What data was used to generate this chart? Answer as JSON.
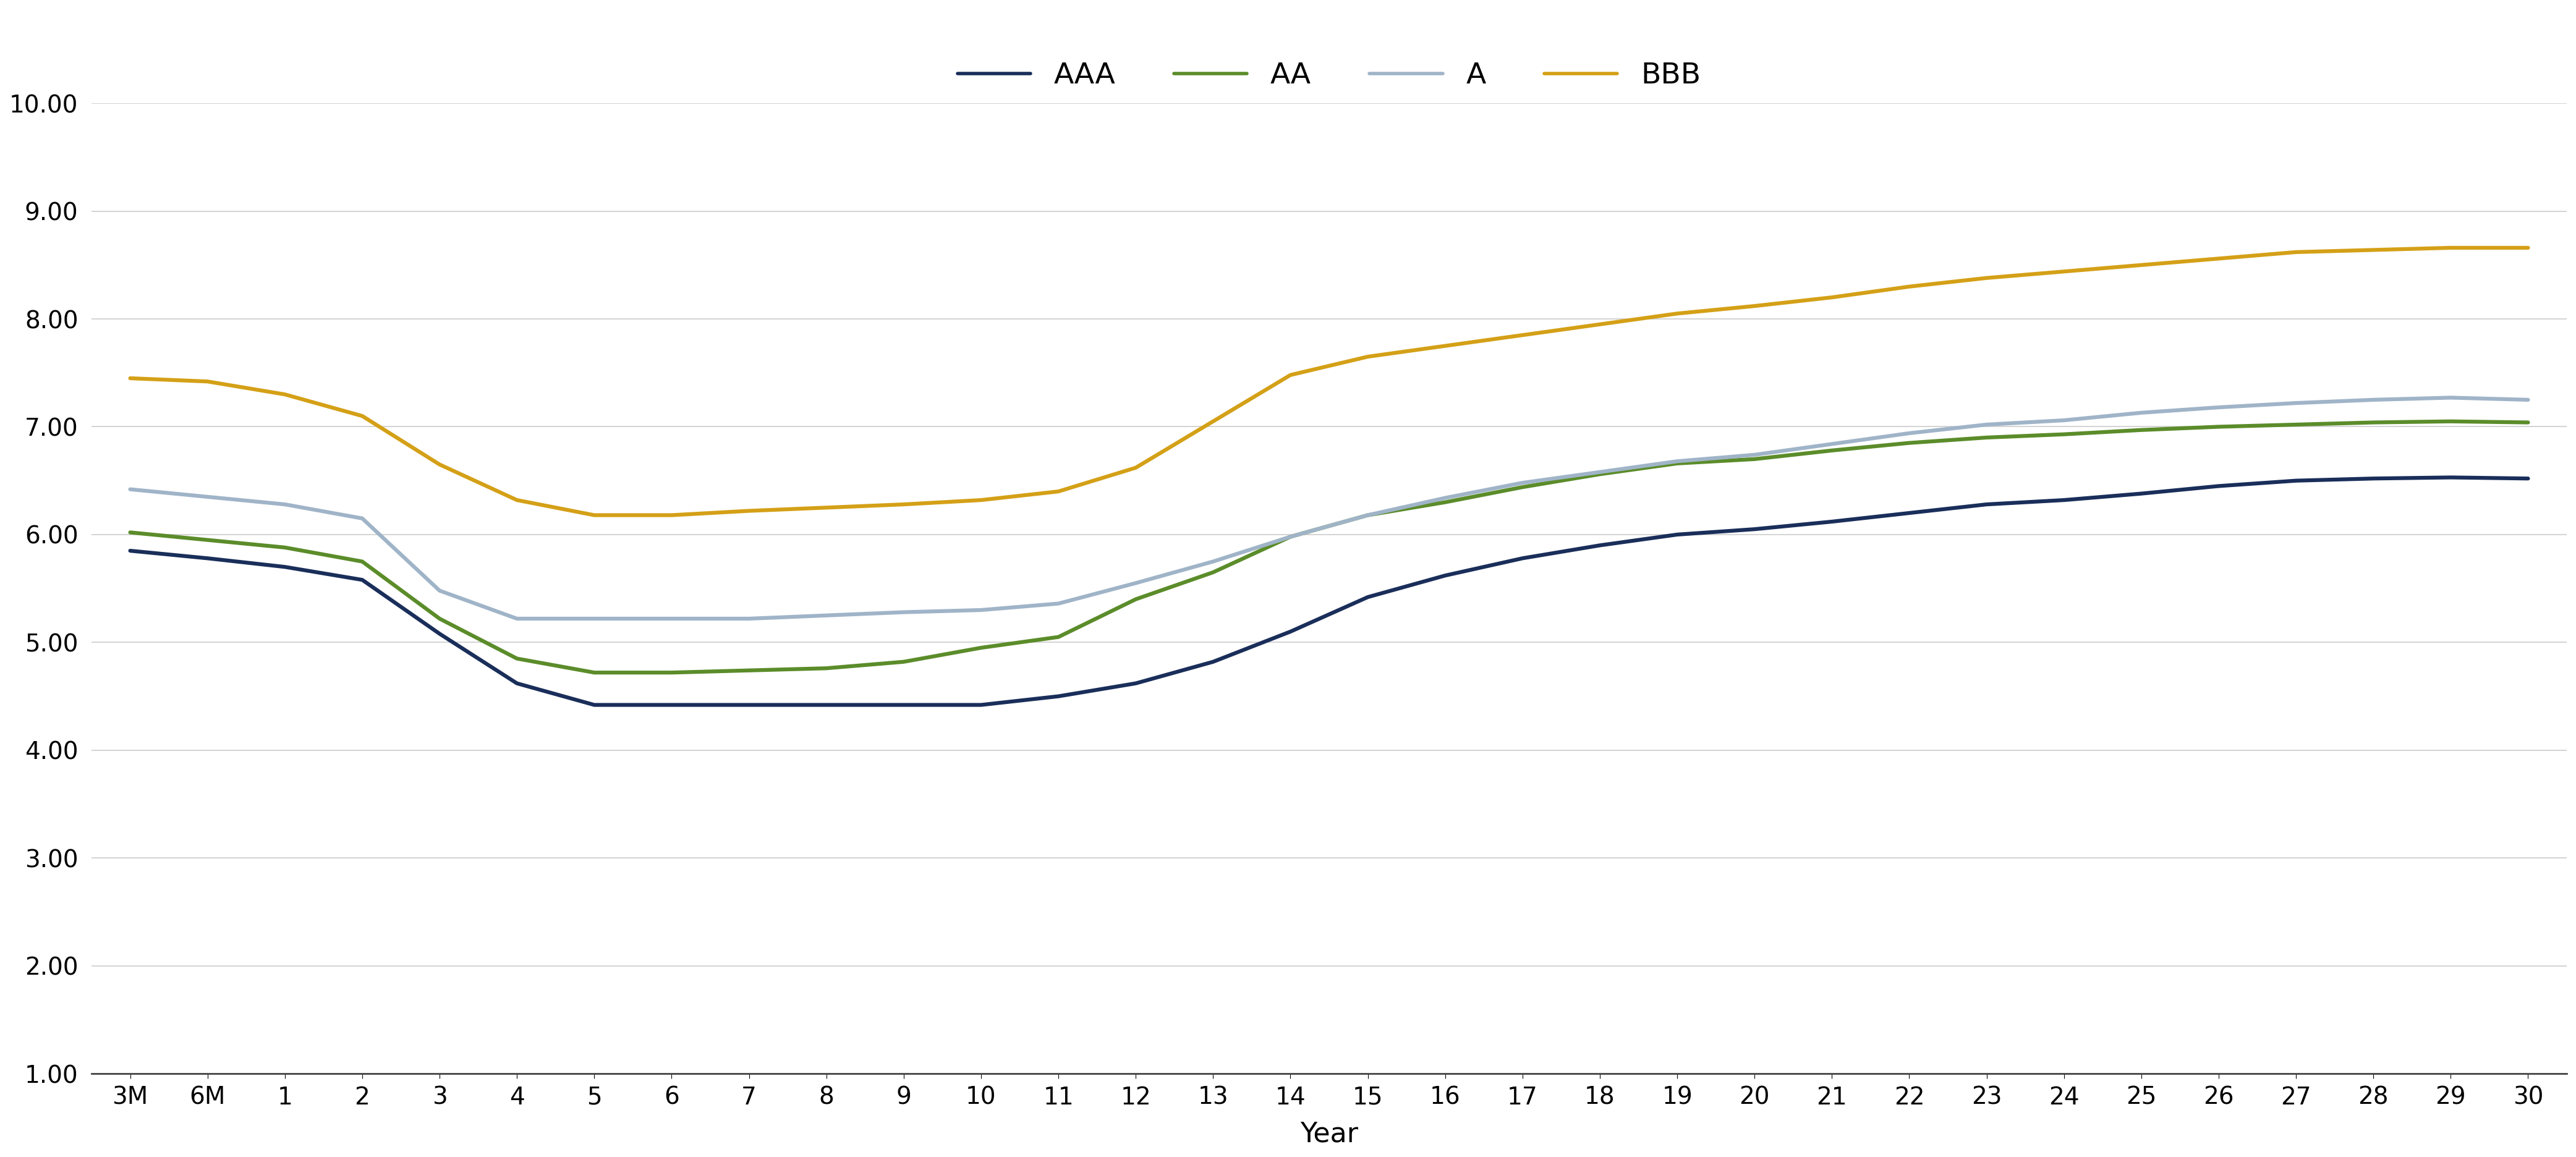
{
  "x_labels": [
    "3M",
    "6M",
    "1",
    "2",
    "3",
    "4",
    "5",
    "6",
    "7",
    "8",
    "9",
    "10",
    "11",
    "12",
    "13",
    "14",
    "15",
    "16",
    "17",
    "18",
    "19",
    "20",
    "21",
    "22",
    "23",
    "24",
    "25",
    "26",
    "27",
    "28",
    "29",
    "30"
  ],
  "x_positions": [
    0,
    1,
    2,
    3,
    4,
    5,
    6,
    7,
    8,
    9,
    10,
    11,
    12,
    13,
    14,
    15,
    16,
    17,
    18,
    19,
    20,
    21,
    22,
    23,
    24,
    25,
    26,
    27,
    28,
    29,
    30,
    31
  ],
  "AAA": [
    5.85,
    5.78,
    5.7,
    5.58,
    5.08,
    4.62,
    4.42,
    4.42,
    4.42,
    4.42,
    4.42,
    4.42,
    4.5,
    4.62,
    4.82,
    5.1,
    5.42,
    5.62,
    5.78,
    5.9,
    6.0,
    6.05,
    6.12,
    6.2,
    6.28,
    6.32,
    6.38,
    6.45,
    6.5,
    6.52,
    6.53,
    6.52
  ],
  "AA": [
    6.02,
    5.95,
    5.88,
    5.75,
    5.22,
    4.85,
    4.72,
    4.72,
    4.74,
    4.76,
    4.82,
    4.95,
    5.05,
    5.4,
    5.65,
    5.98,
    6.18,
    6.3,
    6.44,
    6.56,
    6.66,
    6.7,
    6.78,
    6.85,
    6.9,
    6.93,
    6.97,
    7.0,
    7.02,
    7.04,
    7.05,
    7.04
  ],
  "A": [
    6.42,
    6.35,
    6.28,
    6.15,
    5.48,
    5.22,
    5.22,
    5.22,
    5.22,
    5.25,
    5.28,
    5.3,
    5.36,
    5.55,
    5.75,
    5.98,
    6.18,
    6.34,
    6.48,
    6.58,
    6.68,
    6.74,
    6.84,
    6.94,
    7.02,
    7.06,
    7.13,
    7.18,
    7.22,
    7.25,
    7.27,
    7.25
  ],
  "BBB": [
    7.45,
    7.42,
    7.3,
    7.1,
    6.65,
    6.32,
    6.18,
    6.18,
    6.22,
    6.25,
    6.28,
    6.32,
    6.4,
    6.62,
    7.05,
    7.48,
    7.65,
    7.75,
    7.85,
    7.95,
    8.05,
    8.12,
    8.2,
    8.3,
    8.38,
    8.44,
    8.5,
    8.56,
    8.62,
    8.64,
    8.66,
    8.66
  ],
  "AAA_color": "#1a2e5a",
  "AA_color": "#5b8c2a",
  "A_color": "#a0b4c8",
  "BBB_color": "#d4a017",
  "ylabel_min": 1.0,
  "ylabel_max": 10.0,
  "ylabel_step": 1.0,
  "xlabel": "Year",
  "background_color": "#ffffff",
  "grid_color": "#cccccc",
  "line_width": 4.5,
  "tick_fontsize": 28,
  "label_fontsize": 32,
  "legend_fontsize": 34
}
